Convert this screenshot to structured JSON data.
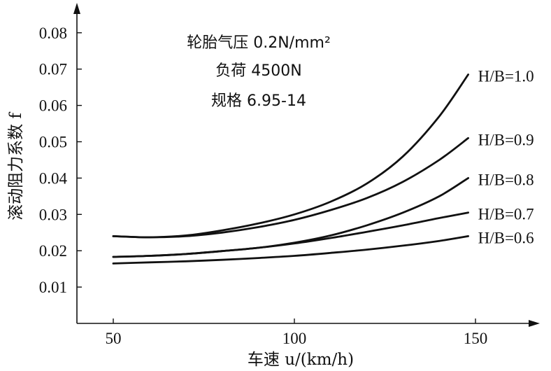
{
  "chart_data": {
    "type": "line",
    "xlabel": "车速 u/(km/h)",
    "ylabel": "滚动阻力系数 f",
    "xlim": [
      40,
      160
    ],
    "ylim": [
      0,
      0.09
    ],
    "x_ticks": [
      "50",
      "100",
      "150"
    ],
    "y_ticks": [
      "0.01",
      "0.02",
      "0.03",
      "0.04",
      "0.05",
      "0.06",
      "0.07",
      "0.08"
    ],
    "annotations": [
      "轮胎气压 0.2N/mm²",
      "负荷 4500N",
      "规格 6.95-14"
    ],
    "line_color": "#111111",
    "series": [
      {
        "name": "H/B=1.0",
        "x": [
          50,
          60,
          70,
          80,
          90,
          100,
          110,
          120,
          130,
          140,
          148
        ],
        "y": [
          0.024,
          0.0237,
          0.0242,
          0.0256,
          0.0275,
          0.03,
          0.0335,
          0.0385,
          0.046,
          0.057,
          0.0685
        ]
      },
      {
        "name": "H/B=0.9",
        "x": [
          50,
          60,
          70,
          80,
          90,
          100,
          110,
          120,
          130,
          140,
          148
        ],
        "y": [
          0.024,
          0.0237,
          0.024,
          0.025,
          0.0265,
          0.0285,
          0.0312,
          0.0345,
          0.039,
          0.045,
          0.051
        ]
      },
      {
        "name": "H/B=0.8",
        "x": [
          50,
          60,
          70,
          80,
          90,
          100,
          110,
          120,
          130,
          140,
          148
        ],
        "y": [
          0.0183,
          0.0186,
          0.0191,
          0.0199,
          0.0208,
          0.0222,
          0.0242,
          0.027,
          0.0305,
          0.035,
          0.04
        ]
      },
      {
        "name": "H/B=0.7",
        "x": [
          50,
          60,
          70,
          80,
          90,
          100,
          110,
          120,
          130,
          140,
          148
        ],
        "y": [
          0.0183,
          0.0186,
          0.0191,
          0.0199,
          0.0208,
          0.022,
          0.0235,
          0.0252,
          0.027,
          0.029,
          0.0305
        ]
      },
      {
        "name": "H/B=0.6",
        "x": [
          50,
          60,
          70,
          80,
          90,
          100,
          110,
          120,
          130,
          140,
          148
        ],
        "y": [
          0.0165,
          0.0168,
          0.0171,
          0.0175,
          0.018,
          0.0186,
          0.0194,
          0.0203,
          0.0214,
          0.0227,
          0.024
        ]
      }
    ]
  }
}
